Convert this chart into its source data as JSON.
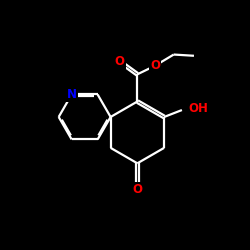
{
  "background_color": "#000000",
  "bond_color": "#ffffff",
  "atom_colors": {
    "O": "#ff0000",
    "N": "#0000ff",
    "C": "#ffffff"
  },
  "lw": 1.6,
  "font_size_atom": 8.5,
  "figure_size": [
    2.5,
    2.5
  ],
  "dpi": 100,
  "xlim": [
    0,
    10
  ],
  "ylim": [
    0,
    10
  ]
}
